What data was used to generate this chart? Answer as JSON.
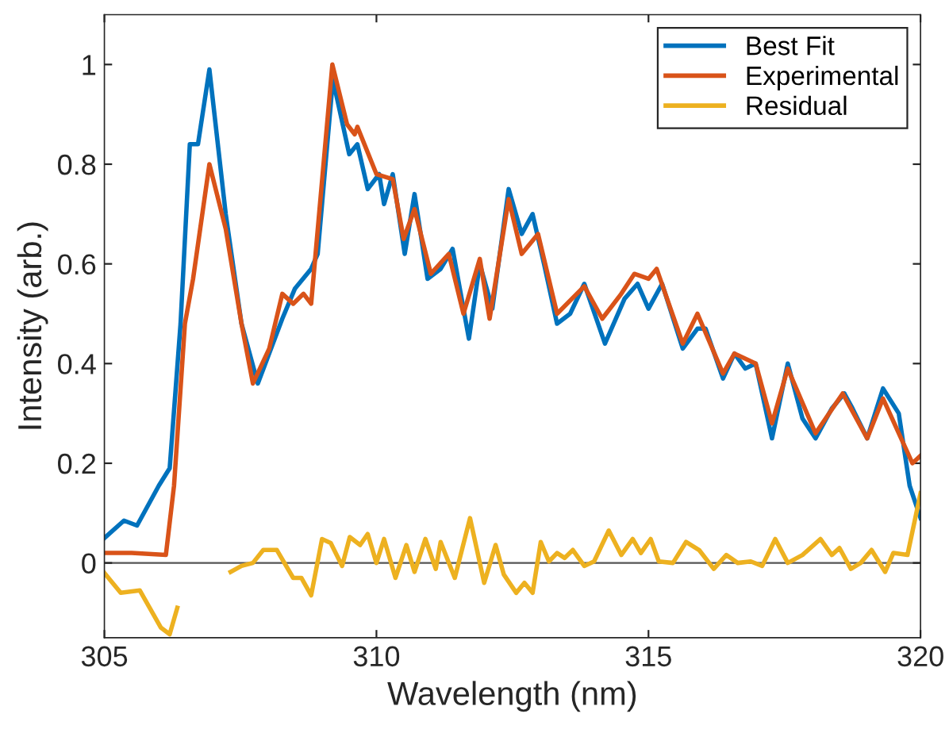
{
  "chart_data": {
    "type": "line",
    "xlabel": "Wavelength (nm)",
    "ylabel": "Intensity (arb.)",
    "xlim": [
      305,
      320
    ],
    "ylim": [
      -0.15,
      1.1
    ],
    "xticks": [
      305,
      310,
      315,
      320
    ],
    "yticks": [
      0,
      0.2,
      0.4,
      0.6,
      0.8,
      1
    ],
    "grid": false,
    "legend": "top right",
    "line_style": "solid",
    "ref_lines": [
      {
        "axis": "y",
        "value": 0,
        "color": "#555555"
      }
    ],
    "series": [
      {
        "name": "Best Fit",
        "color": "#0072bd",
        "x": [
          305,
          305.36,
          305.6,
          306.0,
          306.2,
          306.4,
          306.57,
          306.72,
          306.93,
          307.23,
          307.52,
          307.82,
          308.27,
          308.5,
          308.8,
          308.92,
          309.2,
          309.5,
          309.65,
          309.84,
          310.05,
          310.14,
          310.3,
          310.52,
          310.7,
          310.94,
          311.18,
          311.4,
          311.7,
          311.9,
          312.13,
          312.43,
          312.67,
          312.87,
          313.08,
          313.32,
          313.56,
          313.82,
          314.2,
          314.56,
          314.8,
          315.0,
          315.25,
          315.63,
          315.9,
          316.05,
          316.37,
          316.58,
          316.78,
          316.97,
          317.27,
          317.56,
          317.83,
          318.07,
          318.37,
          318.6,
          318.75,
          319.02,
          319.31,
          319.6,
          319.8,
          320
        ],
        "values": [
          0.05,
          0.085,
          0.075,
          0.155,
          0.19,
          0.48,
          0.84,
          0.84,
          0.99,
          0.7,
          0.48,
          0.36,
          0.49,
          0.55,
          0.59,
          0.62,
          0.97,
          0.82,
          0.84,
          0.75,
          0.78,
          0.72,
          0.78,
          0.62,
          0.74,
          0.57,
          0.59,
          0.63,
          0.45,
          0.6,
          0.51,
          0.75,
          0.66,
          0.7,
          0.6,
          0.48,
          0.5,
          0.56,
          0.44,
          0.53,
          0.56,
          0.51,
          0.56,
          0.43,
          0.47,
          0.47,
          0.37,
          0.42,
          0.39,
          0.4,
          0.25,
          0.4,
          0.29,
          0.25,
          0.31,
          0.34,
          0.31,
          0.25,
          0.35,
          0.3,
          0.155,
          0.09
        ]
      },
      {
        "name": "Experimental",
        "color": "#d95319",
        "x": [
          305,
          305.5,
          306.13,
          306.28,
          306.48,
          306.63,
          306.93,
          307.23,
          307.52,
          307.73,
          308.03,
          308.27,
          308.47,
          308.66,
          308.8,
          309.19,
          309.46,
          309.6,
          309.65,
          310.0,
          310.3,
          310.5,
          310.7,
          311.0,
          311.33,
          311.6,
          311.9,
          312.08,
          312.43,
          312.67,
          312.97,
          313.32,
          313.82,
          314.15,
          314.5,
          314.74,
          315.0,
          315.15,
          315.63,
          315.9,
          316.37,
          316.58,
          316.97,
          317.27,
          317.56,
          318.07,
          318.57,
          319.02,
          319.31,
          319.85,
          320
        ],
        "values": [
          0.02,
          0.02,
          0.016,
          0.155,
          0.48,
          0.57,
          0.8,
          0.67,
          0.48,
          0.36,
          0.43,
          0.54,
          0.52,
          0.54,
          0.52,
          1.0,
          0.88,
          0.86,
          0.875,
          0.78,
          0.77,
          0.65,
          0.71,
          0.58,
          0.62,
          0.5,
          0.61,
          0.49,
          0.73,
          0.62,
          0.66,
          0.5,
          0.555,
          0.49,
          0.54,
          0.58,
          0.57,
          0.59,
          0.44,
          0.5,
          0.38,
          0.42,
          0.4,
          0.28,
          0.39,
          0.26,
          0.34,
          0.25,
          0.33,
          0.2,
          0.215
        ]
      },
      {
        "name": "Residual",
        "color": "#edb120",
        "x": [
          305,
          305.3,
          305.65,
          306.04,
          306.2,
          306.34,
          306.43,
          307.02,
          307.32,
          307.52,
          307.73,
          307.92,
          308.17,
          308.47,
          308.62,
          308.8,
          309.0,
          309.16,
          309.37,
          309.51,
          309.7,
          309.84,
          310.0,
          310.14,
          310.35,
          310.55,
          310.7,
          310.9,
          311.09,
          311.18,
          311.44,
          311.72,
          311.98,
          312.19,
          312.34,
          312.57,
          312.72,
          312.87,
          313.02,
          313.17,
          313.32,
          313.46,
          313.61,
          313.82,
          314.0,
          314.27,
          314.5,
          314.71,
          314.86,
          315.04,
          315.19,
          315.45,
          315.69,
          315.93,
          316.2,
          316.43,
          316.64,
          316.88,
          317.09,
          317.33,
          317.56,
          317.83,
          318.16,
          318.37,
          318.51,
          318.72,
          318.9,
          319.1,
          319.35,
          319.5,
          319.76,
          320
        ],
        "values": [
          -0.02,
          -0.06,
          -0.055,
          -0.13,
          -0.143,
          -0.09,
          null,
          null,
          -0.018,
          -0.006,
          0,
          0.026,
          0.026,
          -0.03,
          -0.03,
          -0.065,
          0.048,
          0.04,
          -0.006,
          0.052,
          0.036,
          0.058,
          0,
          0.048,
          -0.03,
          0.036,
          -0.018,
          0.048,
          -0.012,
          0.042,
          -0.03,
          0.09,
          -0.04,
          0.036,
          -0.023,
          -0.06,
          -0.04,
          -0.06,
          0.042,
          0.003,
          0.02,
          0.01,
          0.026,
          -0.006,
          0.003,
          0.065,
          0.016,
          0.048,
          0.02,
          0.048,
          0.003,
          0,
          0.042,
          0.026,
          -0.012,
          0.016,
          0,
          0.003,
          -0.006,
          0.048,
          0,
          0.016,
          0.048,
          0.016,
          0.03,
          -0.012,
          0,
          0.026,
          -0.018,
          0.02,
          0.016,
          0.14
        ]
      }
    ]
  }
}
